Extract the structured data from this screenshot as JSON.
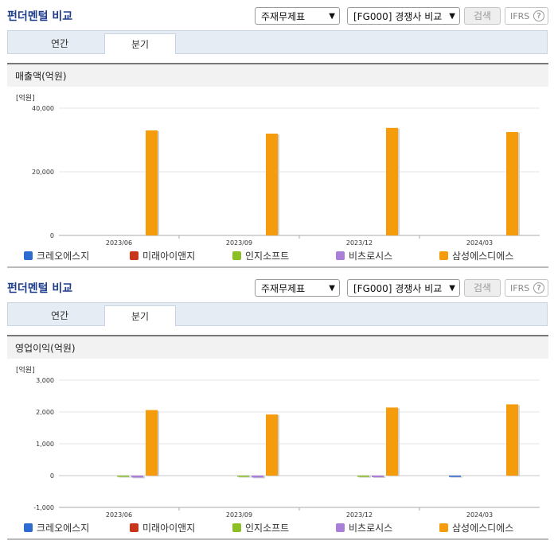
{
  "panels": [
    {
      "title": "펀더멘털 비교",
      "select_statement": "주재무제표",
      "select_group": "[FG000] 경쟁사 비교",
      "search_label": "검색",
      "ifrs_label": "IFRS",
      "help_glyph": "?",
      "tabs": [
        {
          "label": "연간"
        },
        {
          "label": "분기"
        }
      ],
      "active_tab": "분기",
      "chart_title": "매출액(억원)"
    },
    {
      "title": "펀더멘털 비교",
      "select_statement": "주재무제표",
      "select_group": "[FG000] 경쟁사 비교",
      "search_label": "검색",
      "ifrs_label": "IFRS",
      "help_glyph": "?",
      "tabs": [
        {
          "label": "연간"
        },
        {
          "label": "분기"
        }
      ],
      "active_tab": "분기",
      "chart_title": "영업이익(억원)"
    }
  ],
  "colors": {
    "brand_title": "#1f3d8c",
    "series": [
      "#2e6bd0",
      "#c8351b",
      "#8cbf26",
      "#a97fd8",
      "#f59c0c"
    ]
  },
  "chart_data": [
    {
      "type": "bar",
      "title": "매출액(억원)",
      "unit_label": "[억원]",
      "categories": [
        "2023/06",
        "2023/09",
        "2023/12",
        "2024/03"
      ],
      "series": [
        {
          "name": "크레오에스지",
          "values": [
            0,
            0,
            0,
            0
          ]
        },
        {
          "name": "미래아이앤지",
          "values": [
            0,
            0,
            0,
            0
          ]
        },
        {
          "name": "인지소프트",
          "values": [
            0,
            0,
            0,
            0
          ]
        },
        {
          "name": "비츠로시스",
          "values": [
            0,
            0,
            0,
            0
          ]
        },
        {
          "name": "삼성에스디에스",
          "values": [
            33000,
            32000,
            33800,
            32500
          ]
        }
      ],
      "ylim": [
        0,
        40000
      ],
      "yticks": [
        0,
        20000,
        40000
      ],
      "ytick_labels": [
        "0",
        "20,000",
        "40,000"
      ],
      "grid": true,
      "legend": "bottom"
    },
    {
      "type": "bar",
      "title": "영업이익(억원)",
      "unit_label": "[억원]",
      "categories": [
        "2023/06",
        "2023/09",
        "2023/12",
        "2024/03"
      ],
      "series": [
        {
          "name": "크레오에스지",
          "values": [
            0,
            0,
            0,
            -40
          ]
        },
        {
          "name": "미래아이앤지",
          "values": [
            0,
            0,
            0,
            0
          ]
        },
        {
          "name": "인지소프트",
          "values": [
            -10,
            -10,
            -40,
            0
          ]
        },
        {
          "name": "비츠로시스",
          "values": [
            -60,
            -60,
            -50,
            0
          ]
        },
        {
          "name": "삼성에스디에스",
          "values": [
            2060,
            1920,
            2140,
            2240
          ]
        }
      ],
      "ylim": [
        -1000,
        3000
      ],
      "yticks": [
        -1000,
        0,
        1000,
        2000,
        3000
      ],
      "ytick_labels": [
        "-1,000",
        "0",
        "1,000",
        "2,000",
        "3,000"
      ],
      "grid": true,
      "legend": "bottom"
    }
  ]
}
